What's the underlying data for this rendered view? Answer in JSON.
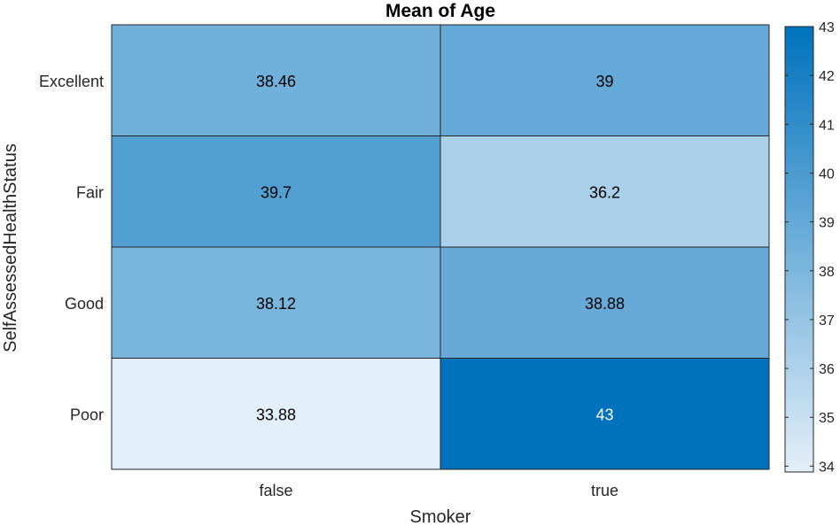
{
  "chart_data": {
    "type": "heatmap",
    "title": "Mean of Age",
    "xlabel": "Smoker",
    "ylabel": "SelfAssessedHealthStatus",
    "x_categories": [
      "false",
      "true"
    ],
    "y_categories": [
      "Excellent",
      "Fair",
      "Good",
      "Poor"
    ],
    "values": [
      [
        38.46,
        39
      ],
      [
        39.7,
        36.2
      ],
      [
        38.12,
        38.88
      ],
      [
        33.88,
        43
      ]
    ],
    "value_labels": [
      [
        "38.46",
        "39"
      ],
      [
        "39.7",
        "36.2"
      ],
      [
        "38.12",
        "38.88"
      ],
      [
        "33.88",
        "43"
      ]
    ],
    "colorbar": {
      "min": 33.88,
      "max": 43,
      "ticks": [
        34,
        35,
        36,
        37,
        38,
        39,
        40,
        41,
        42,
        43
      ],
      "color_low": "#e3eff8",
      "color_high": "#0072bd"
    },
    "grid": false,
    "legend": "colorbar-right"
  }
}
